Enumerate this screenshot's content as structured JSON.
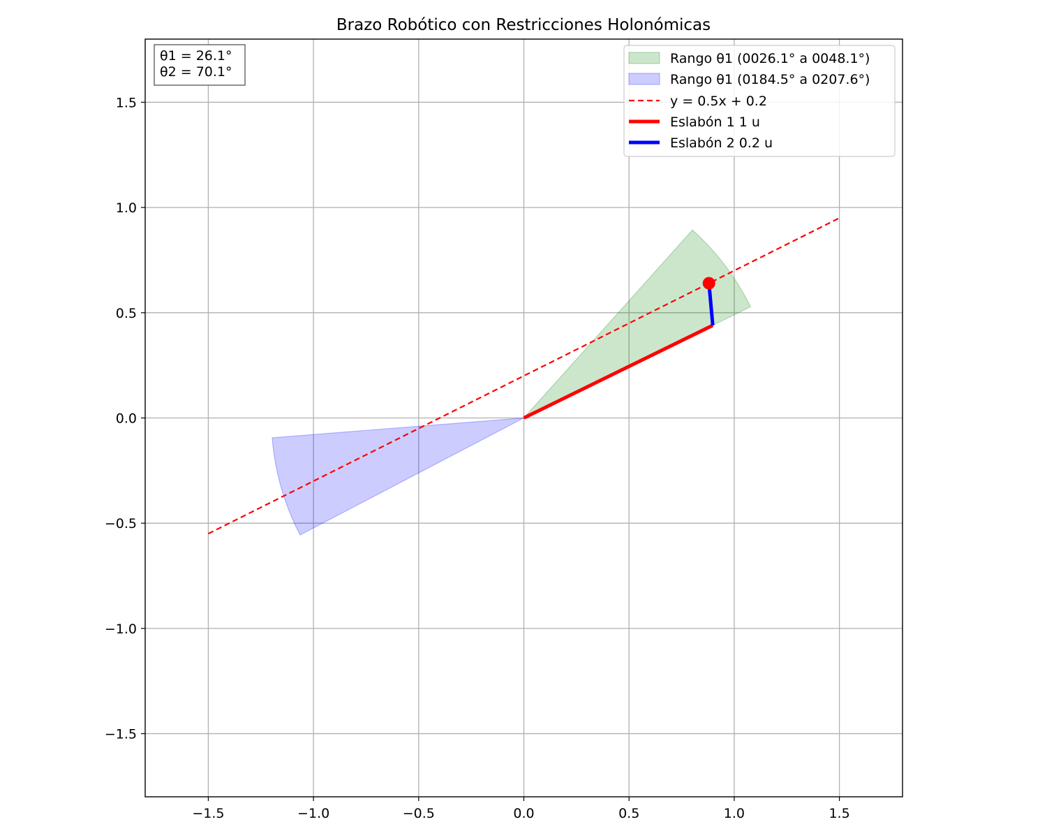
{
  "chart_data": {
    "type": "line",
    "title": "Brazo Robótico con Restricciones Holonómicas",
    "xlabel": "",
    "ylabel": "",
    "xlim": [
      -1.8,
      1.8
    ],
    "ylim": [
      -1.8,
      1.8
    ],
    "grid": true,
    "legend_placement": "top-right",
    "x_ticks": [
      -1.5,
      -1.0,
      -0.5,
      0.0,
      0.5,
      1.0,
      1.5
    ],
    "x_tick_labels": [
      "−1.5",
      "−1.0",
      "−0.5",
      "0.0",
      "0.5",
      "1.0",
      "1.5"
    ],
    "y_ticks": [
      -1.5,
      -1.0,
      -0.5,
      0.0,
      0.5,
      1.0,
      1.5
    ],
    "y_tick_labels": [
      "−1.5",
      "−1.0",
      "−0.5",
      "0.0",
      "0.5",
      "1.0",
      "1.5"
    ],
    "info_box": [
      "θ1 = 26.1°",
      "θ2 = 70.1°"
    ],
    "regions": [
      {
        "name": "Rango θ1 (0026.1° a 0048.1°)",
        "radius": 1.2,
        "start_deg": 26.1,
        "end_deg": 48.1,
        "color": "#008000"
      },
      {
        "name": "Rango θ1 (0184.5° a 0207.6°)",
        "radius": 1.2,
        "start_deg": 184.5,
        "end_deg": 207.6,
        "color": "#0000ff"
      }
    ],
    "constraint_line": {
      "name": "y = 0.5x + 0.2",
      "slope": 0.5,
      "intercept": 0.2,
      "x_range": [
        -1.5,
        1.5
      ],
      "color": "#ff0000"
    },
    "links": [
      {
        "name": "Eslabón 1 1 u",
        "from": [
          0.0,
          0.0
        ],
        "to": [
          0.898,
          0.44
        ],
        "color": "#ff0000"
      },
      {
        "name": "Eslabón 2 0.2 u",
        "from": [
          0.898,
          0.44
        ],
        "to": [
          0.88,
          0.64
        ],
        "color": "#0000ff"
      }
    ],
    "end_effector": {
      "x": 0.88,
      "y": 0.64,
      "color": "#ff0000"
    }
  }
}
